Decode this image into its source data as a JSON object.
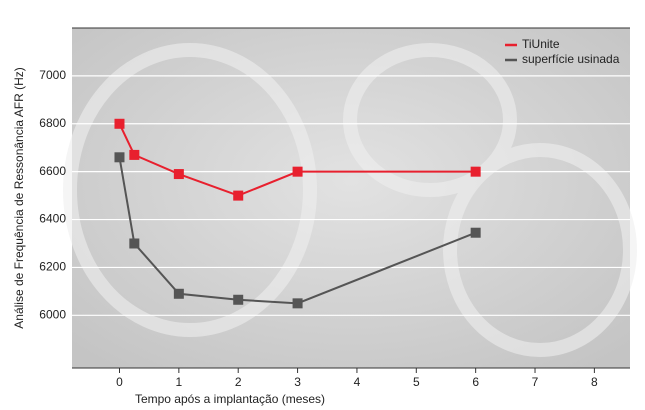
{
  "chart_data": {
    "type": "line",
    "x_label": "Tempo após a implantação (meses)",
    "y_label": "Análise de Frequência de Ressonância AFR (Hz)",
    "series": [
      {
        "name": "TiUnite",
        "color": "#e8202e",
        "x": [
          0,
          0.25,
          1,
          2,
          3,
          6
        ],
        "values": [
          6800,
          6670,
          6590,
          6500,
          6600,
          6600
        ]
      },
      {
        "name": "superfície usinada",
        "color": "#555555",
        "x": [
          0,
          0.25,
          1,
          2,
          3,
          6
        ],
        "values": [
          6660,
          6300,
          6090,
          6065,
          6050,
          6345
        ]
      }
    ],
    "xlim": [
      -0.8,
      8.6
    ],
    "xticks": [
      0,
      1,
      2,
      3,
      4,
      5,
      6,
      7,
      8
    ],
    "ylim": [
      5780,
      7200
    ],
    "yticks": [
      6000,
      6200,
      6400,
      6600,
      6800,
      7000
    ],
    "grid": true,
    "legend": "top-right"
  }
}
